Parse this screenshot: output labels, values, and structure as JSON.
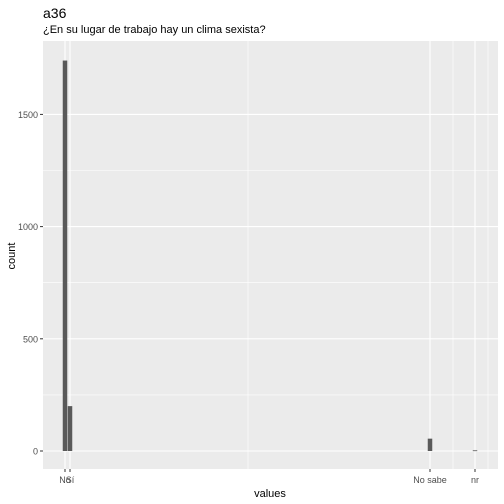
{
  "chart_data": {
    "type": "bar",
    "title": "a36",
    "subtitle": "¿En su lugar de trabajo hay un clima sexista?",
    "xlabel": "values",
    "ylabel": "count",
    "ylim": [
      0,
      1830
    ],
    "yticks": [
      0,
      500,
      1000,
      1500
    ],
    "categories": [
      "No",
      "Sí",
      "No sabe",
      "nr"
    ],
    "values": [
      1740,
      200,
      55,
      3
    ],
    "grid": true,
    "legend": "none",
    "colors": {
      "panel": "#ebebeb",
      "grid": "#ffffff",
      "bar": "#595959",
      "text": "#4d4d4d"
    }
  }
}
